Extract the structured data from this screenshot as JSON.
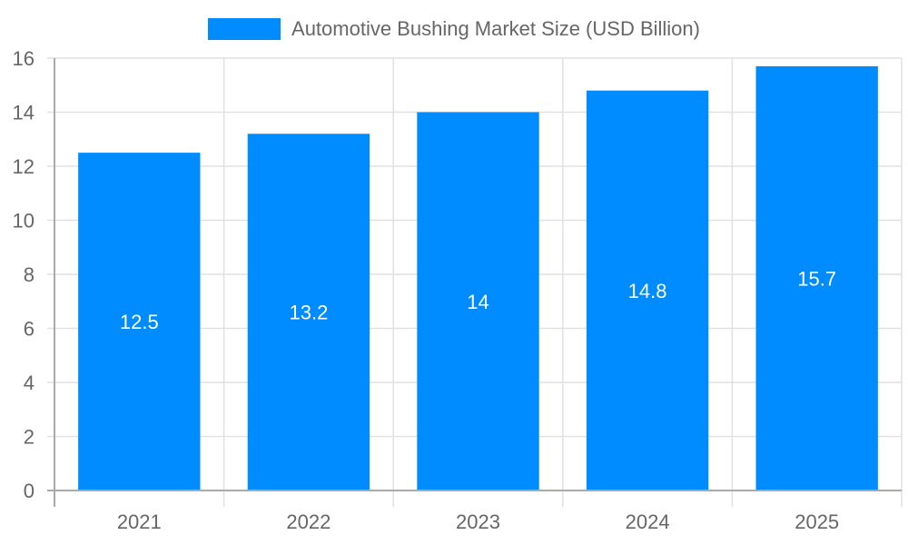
{
  "legend": {
    "label": "Automotive Bushing Market Size (USD Billion)",
    "color": "#008cff"
  },
  "chart_data": {
    "type": "bar",
    "title": "",
    "categories": [
      "2021",
      "2022",
      "2023",
      "2024",
      "2025"
    ],
    "series": [
      {
        "name": "Automotive Bushing Market Size (USD Billion)",
        "values": [
          12.5,
          13.2,
          14,
          14.8,
          15.7
        ],
        "color": "#008cff"
      }
    ],
    "data_labels": [
      "12.5",
      "13.2",
      "14",
      "14.8",
      "15.7"
    ],
    "xlabel": "",
    "ylabel": "",
    "ylim": [
      0,
      16
    ],
    "yticks": [
      0,
      2,
      4,
      6,
      8,
      10,
      12,
      14,
      16
    ],
    "grid": true,
    "legend_position": "top"
  }
}
